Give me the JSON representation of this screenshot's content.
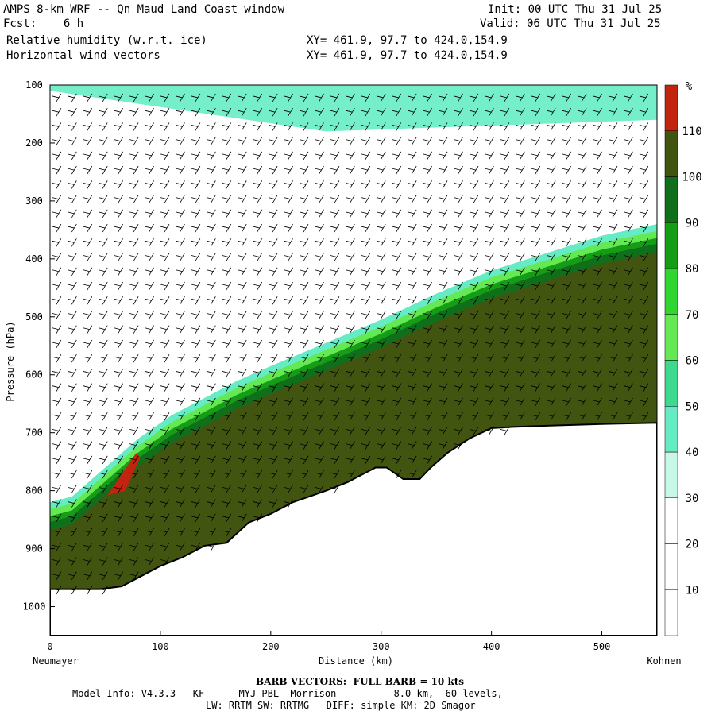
{
  "header": {
    "title": "AMPS 8-km WRF -- Qn Maud Land Coast window",
    "forecast": "Fcst:    6 h",
    "field1": "Relative humidity (w.r.t. ice)",
    "field2": "Horizontal wind vectors",
    "init": "Init: 00 UTC Thu 31 Jul 25",
    "valid": "Valid: 06 UTC Thu 31 Jul 25",
    "xy1": "XY= 461.9, 97.7 to 424.0,154.9",
    "xy2": "XY= 461.9, 97.7 to 424.0,154.9"
  },
  "footer": {
    "barb_note": "BARB VECTORS:  FULL BARB = 10 kts",
    "model_info": "Model Info: V4.3.3   KF      MYJ PBL  Morrison          8.0 km,  60 levels,",
    "model_info2": "LW: RRTM SW: RRTMG   DIFF: simple KM: 2D Smagor"
  },
  "axes": {
    "ylabel": "Pressure (hPa)",
    "xlabel": "Distance (km)",
    "left_station": "Neumayer",
    "right_station": "Kohnen",
    "colorbar_unit": "%"
  },
  "chart_data": {
    "type": "heatmap",
    "title": "Relative humidity (w.r.t. ice)",
    "xlabel": "Distance (km)",
    "ylabel": "Pressure (hPa)",
    "xlim": [
      0,
      550
    ],
    "ylim": [
      1050,
      100
    ],
    "x_ticks": [
      0,
      100,
      200,
      300,
      400,
      500
    ],
    "y_ticks": [
      100,
      200,
      300,
      400,
      500,
      600,
      700,
      800,
      900,
      1000
    ],
    "colorbar": {
      "levels": [
        10,
        20,
        30,
        40,
        50,
        60,
        70,
        80,
        90,
        100,
        110
      ],
      "colors": [
        "#ffffff",
        "#ffffff",
        "#ffffff",
        "#c7f7e6",
        "#66ecc4",
        "#3dd98e",
        "#64e854",
        "#2fd62f",
        "#169d16",
        "#0f6f1a",
        "#415511",
        "#c22410"
      ]
    },
    "terrain": [
      [
        0,
        970
      ],
      [
        20,
        970
      ],
      [
        45,
        970
      ],
      [
        65,
        965
      ],
      [
        80,
        950
      ],
      [
        100,
        930
      ],
      [
        120,
        915
      ],
      [
        140,
        895
      ],
      [
        160,
        890
      ],
      [
        180,
        855
      ],
      [
        200,
        840
      ],
      [
        220,
        820
      ],
      [
        250,
        800
      ],
      [
        270,
        785
      ],
      [
        280,
        775
      ],
      [
        295,
        760
      ],
      [
        305,
        760
      ],
      [
        320,
        780
      ],
      [
        335,
        780
      ],
      [
        345,
        760
      ],
      [
        360,
        735
      ],
      [
        380,
        710
      ],
      [
        400,
        692
      ],
      [
        420,
        690
      ],
      [
        450,
        688
      ],
      [
        500,
        685
      ],
      [
        550,
        683
      ]
    ],
    "moist_top": [
      [
        0,
        820
      ],
      [
        20,
        810
      ],
      [
        50,
        760
      ],
      [
        80,
        710
      ],
      [
        110,
        670
      ],
      [
        140,
        640
      ],
      [
        170,
        610
      ],
      [
        200,
        585
      ],
      [
        250,
        545
      ],
      [
        300,
        505
      ],
      [
        350,
        460
      ],
      [
        400,
        420
      ],
      [
        450,
        390
      ],
      [
        500,
        360
      ],
      [
        550,
        340
      ]
    ],
    "moist_layers": [
      {
        "rh": 40,
        "offset": 0
      },
      {
        "rh": 60,
        "offset": 12
      },
      {
        "rh": 80,
        "offset": 24
      },
      {
        "rh": 90,
        "offset": 34
      },
      {
        "rh": 105,
        "offset": 48
      }
    ],
    "upper_bands": [
      {
        "rh": 40,
        "from": [
          100,
          110
        ],
        "to": [
          160,
          180
        ]
      }
    ],
    "annotations": [
      "Neumayer",
      "Kohnen"
    ]
  }
}
